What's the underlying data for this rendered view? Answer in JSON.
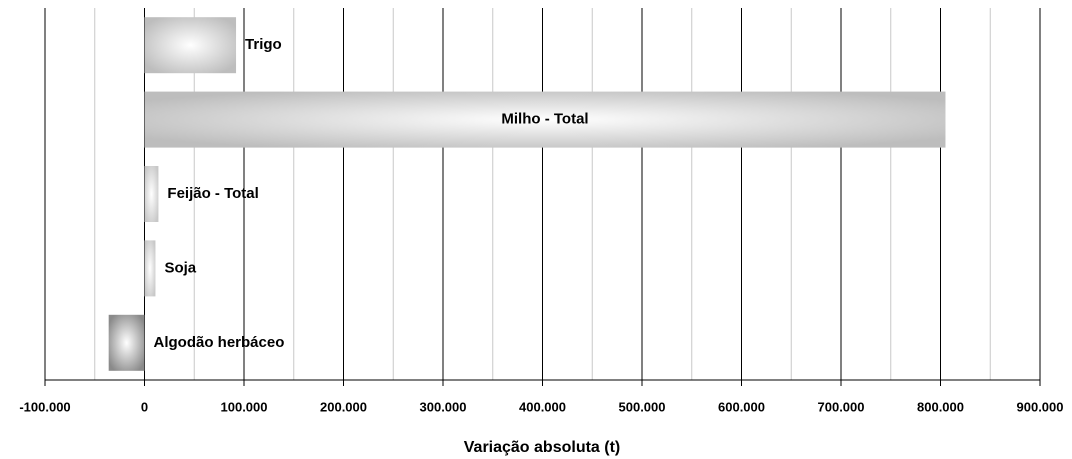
{
  "chart_data": {
    "type": "hbar",
    "x_label": "Variação absoluta (t)",
    "categories": [
      "Trigo",
      "Milho - Total",
      "Feijão - Total",
      "Soja",
      "Algodão herbáceo"
    ],
    "values": [
      92000,
      805000,
      14000,
      11000,
      -36000
    ],
    "colors": [
      "#bdbdbd",
      "#bdbdbd",
      "#c8c8c8",
      "#c8c8c8",
      "#8a8a8a"
    ],
    "xlim": [
      -100000,
      900000
    ],
    "xticks": [
      {
        "value": -100000,
        "label": "-100.000"
      },
      0,
      {
        "value": 100000,
        "label": "100.000"
      },
      {
        "value": 200000,
        "label": "200.000"
      },
      {
        "value": 300000,
        "label": "300.000"
      },
      {
        "value": 400000,
        "label": "400.000"
      },
      {
        "value": 500000,
        "label": "500.000"
      },
      {
        "value": 600000,
        "label": "600.000"
      },
      {
        "value": 700000,
        "label": "700.000"
      },
      {
        "value": 800000,
        "label": "800.000"
      },
      {
        "value": 900000,
        "label": "900.000"
      }
    ],
    "minor_xticks": [
      -50000,
      50000,
      150000,
      250000,
      350000,
      450000,
      550000,
      650000,
      750000,
      850000
    ],
    "grid": true
  }
}
